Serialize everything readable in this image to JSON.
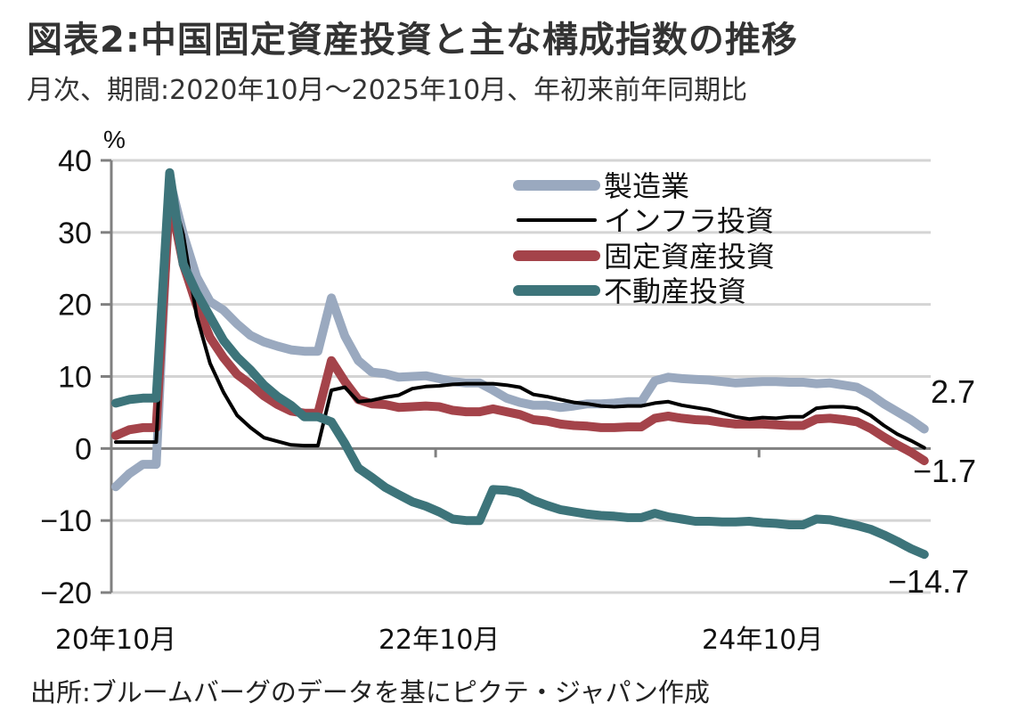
{
  "header": {
    "title": "図表2:中国固定資産投資と主な構成指数の推移",
    "subtitle": "月次、期間:2020年10月～2025年10月、年初来前年同期比"
  },
  "footer": {
    "source": "出所:ブルームバーグのデータを基にピクテ・ジャパン作成"
  },
  "chart_data": {
    "type": "line",
    "title": "図表2:中国固定資産投資と主な構成指数の推移",
    "subtitle": "月次、期間:2020年10月～2025年10月、年初来前年同期比",
    "xlabel": "",
    "ylabel": "%",
    "ylim": [
      -20,
      40
    ],
    "yticks": [
      40,
      30,
      20,
      10,
      0,
      -10,
      -20
    ],
    "ytick_labels": [
      "40",
      "30",
      "20",
      "10",
      "0",
      "−10",
      "−20"
    ],
    "xtick_labels": [
      "20年10月",
      "22年10月",
      "24年10月"
    ],
    "xtick_indices": [
      0,
      24,
      48
    ],
    "grid": true,
    "legend_position": "top-right",
    "x": [
      "2020-10",
      "2020-11",
      "2020-12",
      "2021-01",
      "2021-02",
      "2021-03",
      "2021-04",
      "2021-05",
      "2021-06",
      "2021-07",
      "2021-08",
      "2021-09",
      "2021-10",
      "2021-11",
      "2021-12",
      "2022-01",
      "2022-02",
      "2022-03",
      "2022-04",
      "2022-05",
      "2022-06",
      "2022-07",
      "2022-08",
      "2022-09",
      "2022-10",
      "2022-11",
      "2022-12",
      "2023-01",
      "2023-02",
      "2023-03",
      "2023-04",
      "2023-05",
      "2023-06",
      "2023-07",
      "2023-08",
      "2023-09",
      "2023-10",
      "2023-11",
      "2023-12",
      "2024-01",
      "2024-02",
      "2024-03",
      "2024-04",
      "2024-05",
      "2024-06",
      "2024-07",
      "2024-08",
      "2024-09",
      "2024-10",
      "2024-11",
      "2024-12",
      "2025-01",
      "2025-02",
      "2025-03",
      "2025-04",
      "2025-05",
      "2025-06",
      "2025-07",
      "2025-08",
      "2025-09",
      "2025-10"
    ],
    "series": [
      {
        "name": "製造業",
        "color": "#9aa9bf",
        "line": "thick",
        "values": [
          -5.3,
          -3.5,
          -2.2,
          -2.2,
          37.3,
          29.8,
          23.8,
          20.4,
          19.2,
          17.3,
          15.7,
          14.8,
          14.2,
          13.7,
          13.5,
          13.5,
          20.9,
          15.6,
          12.2,
          10.6,
          10.4,
          9.9,
          10.0,
          10.1,
          9.7,
          9.3,
          9.1,
          9.1,
          8.1,
          7.0,
          6.4,
          6.0,
          6.0,
          5.7,
          5.9,
          6.2,
          6.2,
          6.3,
          6.5,
          6.5,
          9.4,
          9.9,
          9.7,
          9.6,
          9.5,
          9.3,
          9.1,
          9.2,
          9.3,
          9.3,
          9.2,
          9.2,
          9.0,
          9.1,
          8.8,
          8.5,
          7.5,
          6.2,
          5.1,
          4.0,
          2.7
        ]
      },
      {
        "name": "インフラ投資",
        "color": "#000000",
        "line": "thin",
        "values": [
          0.9,
          0.9,
          0.9,
          0.9,
          36.6,
          29.7,
          18.4,
          11.8,
          7.8,
          4.6,
          2.9,
          1.5,
          1.0,
          0.5,
          0.4,
          0.4,
          8.1,
          8.5,
          6.5,
          6.7,
          7.1,
          7.4,
          8.3,
          8.6,
          8.7,
          8.9,
          9.0,
          9.0,
          9.0,
          8.8,
          8.5,
          7.5,
          7.2,
          6.8,
          6.4,
          6.2,
          5.9,
          5.8,
          5.9,
          5.9,
          6.3,
          6.5,
          6.0,
          5.7,
          5.4,
          4.9,
          4.4,
          4.1,
          4.3,
          4.2,
          4.4,
          4.4,
          5.6,
          5.8,
          5.8,
          5.6,
          4.6,
          3.2,
          2.0,
          1.1,
          0.1
        ]
      },
      {
        "name": "固定資産投資",
        "color": "#a4434a",
        "line": "thick",
        "values": [
          1.8,
          2.6,
          2.9,
          2.9,
          35.0,
          25.6,
          19.9,
          15.4,
          12.6,
          10.3,
          8.9,
          7.3,
          6.1,
          5.2,
          4.9,
          4.9,
          12.2,
          9.3,
          6.8,
          6.2,
          6.1,
          5.7,
          5.8,
          5.9,
          5.8,
          5.3,
          5.1,
          5.1,
          5.5,
          5.1,
          4.7,
          4.0,
          3.8,
          3.4,
          3.2,
          3.1,
          2.9,
          2.9,
          3.0,
          3.0,
          4.2,
          4.5,
          4.2,
          4.0,
          3.9,
          3.6,
          3.4,
          3.4,
          3.4,
          3.3,
          3.2,
          3.2,
          4.1,
          4.2,
          4.0,
          3.7,
          2.8,
          1.6,
          0.5,
          -0.5,
          -1.7
        ]
      },
      {
        "name": "不動産投資",
        "color": "#3d747a",
        "line": "thick",
        "values": [
          6.3,
          6.8,
          7.0,
          7.0,
          38.3,
          25.6,
          21.6,
          18.3,
          15.0,
          12.7,
          10.9,
          8.8,
          7.2,
          6.0,
          4.4,
          4.4,
          3.7,
          0.7,
          -2.7,
          -4.0,
          -5.4,
          -6.4,
          -7.4,
          -8.0,
          -8.8,
          -9.8,
          -10.0,
          -10.0,
          -5.7,
          -5.8,
          -6.2,
          -7.2,
          -7.9,
          -8.5,
          -8.8,
          -9.1,
          -9.3,
          -9.4,
          -9.6,
          -9.6,
          -9.0,
          -9.5,
          -9.8,
          -10.1,
          -10.1,
          -10.2,
          -10.2,
          -10.1,
          -10.3,
          -10.4,
          -10.6,
          -10.6,
          -9.8,
          -9.9,
          -10.3,
          -10.7,
          -11.2,
          -12.0,
          -12.9,
          -13.9,
          -14.7
        ]
      }
    ],
    "end_labels": [
      {
        "series": "製造業",
        "text": "2.7"
      },
      {
        "series": "固定資産投資",
        "text": "−1.7"
      },
      {
        "series": "不動産投資",
        "text": "−14.7"
      }
    ]
  }
}
